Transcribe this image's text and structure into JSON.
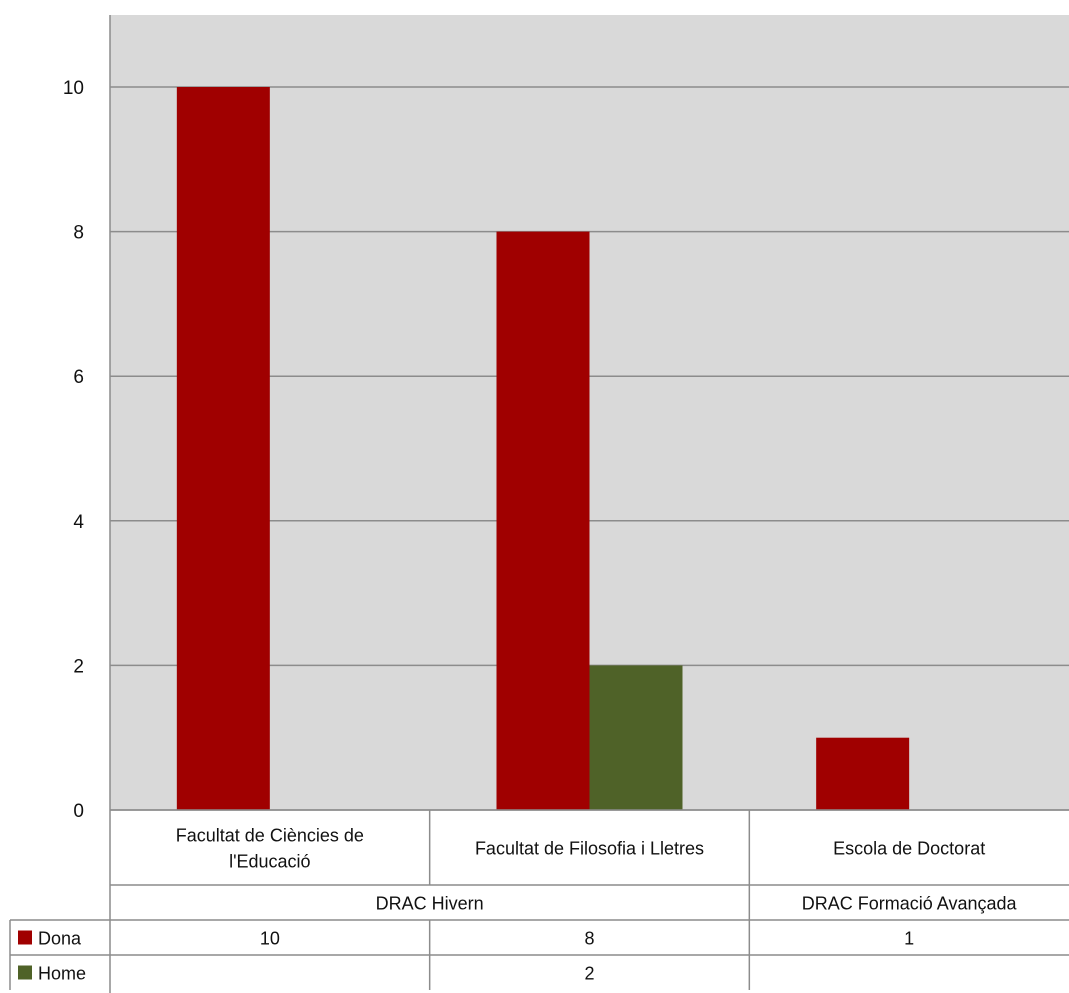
{
  "chart_data": {
    "type": "bar",
    "groups": [
      {
        "label": "DRAC Hivern",
        "categories": [
          "Facultat de Ciències de l'Educació",
          "Facultat de Filosofia i Lletres"
        ]
      },
      {
        "label": "DRAC Formació Avançada",
        "categories": [
          "Escola de Doctorat"
        ]
      }
    ],
    "categories": [
      "Facultat de Ciències de l'Educació",
      "Facultat de Filosofia i Lletres",
      "Escola de Doctorat"
    ],
    "category_lines": [
      [
        "Facultat de Ciències de",
        "l'Educació"
      ],
      [
        "Facultat de Filosofia i Lletres"
      ],
      [
        "Escola de Doctorat"
      ]
    ],
    "series": [
      {
        "name": "Dona",
        "color": "#a00000",
        "values": [
          10,
          8,
          1
        ],
        "table_values": [
          "10",
          "8",
          "1"
        ]
      },
      {
        "name": "Home",
        "color": "#4f6228",
        "values": [
          null,
          2,
          null
        ],
        "table_values": [
          "",
          "2",
          ""
        ]
      }
    ],
    "ylim": [
      0,
      10
    ],
    "yticks": [
      0,
      2,
      4,
      6,
      8,
      10
    ],
    "xlabel": "",
    "ylabel": "",
    "title": "",
    "grid": true,
    "plot_background": "#d9d9d9",
    "data_table": true
  }
}
